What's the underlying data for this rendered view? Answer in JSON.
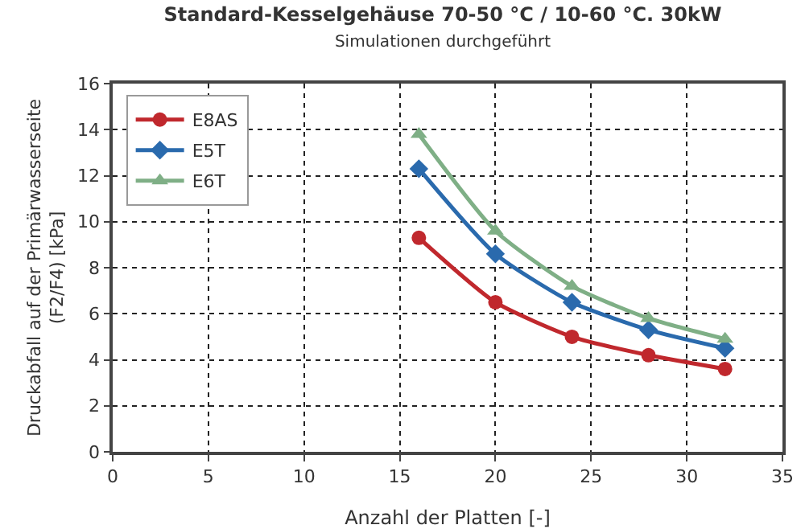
{
  "chart_data": {
    "type": "line",
    "title": "Standard-Kesselgehäuse 70-50 °C / 10-60 °C. 30kW",
    "subtitle": "Simulationen durchgeführt",
    "xlabel": "Anzahl der Platten [-]",
    "ylabel": "Druckabfall auf der Primärwasserseite\n(F2/F4) [kPa]",
    "x": [
      16,
      20,
      24,
      28,
      32
    ],
    "series": [
      {
        "name": "E8AS",
        "color": "#c0282d",
        "marker": "circle",
        "values": [
          9.3,
          6.5,
          5.0,
          4.2,
          3.6
        ]
      },
      {
        "name": "E5T",
        "color": "#2a6aad",
        "marker": "diamond",
        "values": [
          12.3,
          8.6,
          6.5,
          5.3,
          4.5
        ]
      },
      {
        "name": "E6T",
        "color": "#7faf86",
        "marker": "triangle",
        "values": [
          13.8,
          9.6,
          7.2,
          5.8,
          4.9
        ]
      }
    ],
    "xlim": [
      0,
      35
    ],
    "xticks": [
      0,
      5,
      10,
      15,
      20,
      25,
      30,
      35
    ],
    "ylim": [
      0,
      16
    ],
    "yticks": [
      0,
      2,
      4,
      6,
      8,
      10,
      12,
      14,
      16
    ],
    "grid": true,
    "legend": "top left",
    "line_style": "solid"
  }
}
